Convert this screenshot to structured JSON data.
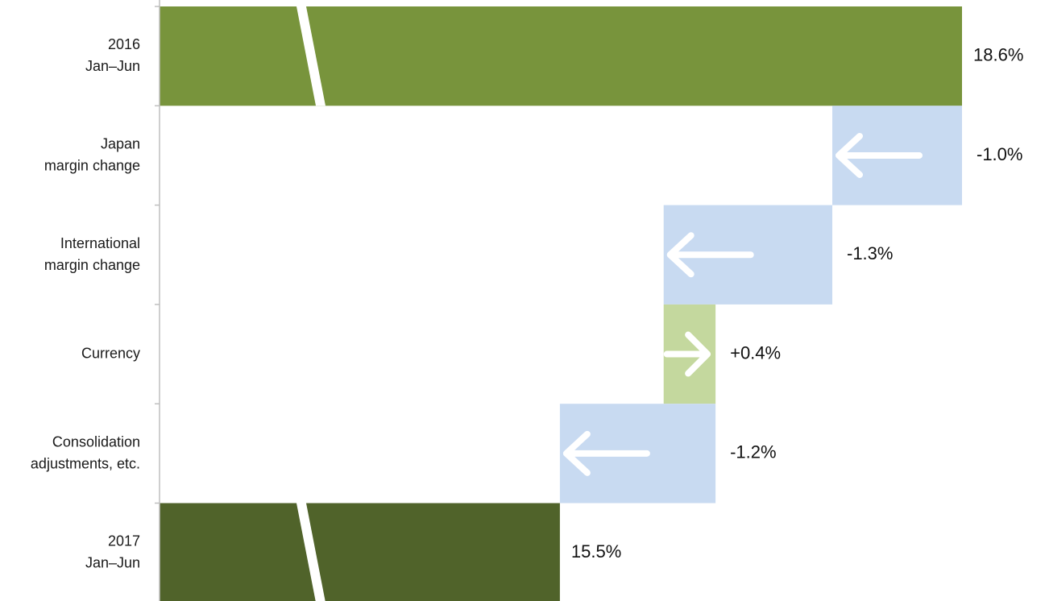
{
  "chart_data": {
    "type": "bar",
    "subtype": "horizontal-waterfall",
    "axis_break": true,
    "categories": [
      [
        "2016",
        "Jan–Jun"
      ],
      [
        "Japan",
        "margin change"
      ],
      [
        "International",
        "margin change"
      ],
      [
        "Currency"
      ],
      [
        "Consolidation",
        "adjustments, etc."
      ],
      [
        "2017",
        "Jan–Jun"
      ]
    ],
    "values": [
      18.6,
      -1.0,
      -1.3,
      0.4,
      -1.2,
      15.5
    ],
    "value_labels": [
      "18.6%",
      "-1.0%",
      "-1.3%",
      "+0.4%",
      "-1.2%",
      "15.5%"
    ],
    "bar_kinds": [
      "total",
      "decrease",
      "decrease",
      "increase",
      "decrease",
      "total"
    ],
    "colors": {
      "total_start": "#78943c",
      "total_end": "#50632a",
      "decrease": "#c8daf1",
      "increase": "#c4d89e",
      "arrow": "#ffffff",
      "axis": "#bfbfbf"
    },
    "icons": {
      "decrease": "arrow-left-icon",
      "increase": "arrow-right-icon"
    }
  }
}
